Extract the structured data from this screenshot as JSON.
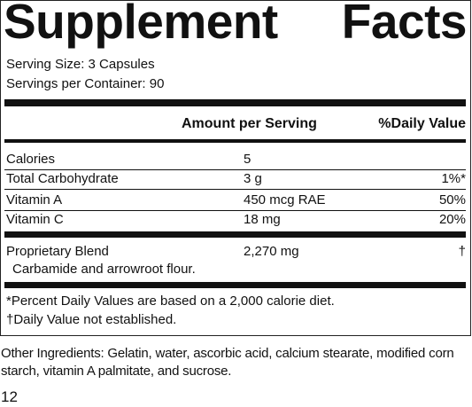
{
  "title": "Supplement Facts",
  "serving_size": "Serving Size: 3 Capsules",
  "servings_per_container": "Servings per Container: 90",
  "table": {
    "header": [
      "Amount per Serving",
      "%Daily Value"
    ],
    "rows": [
      {
        "name": "Calories",
        "amount": "5"
      },
      {
        "name": "Total Carbohydrate",
        "amount": "3 g",
        "dv": "1%*"
      },
      {
        "name": "Vitamin A",
        "amount": "450 mcg RAE",
        "dv": "50%"
      },
      {
        "name": "Vitamin C",
        "amount": "18 mg",
        "dv": "20%"
      },
      {
        "name": "Proprietary Blend",
        "amount": "2,270 mg",
        "dv": "†",
        "description": "Carbamide and arrowroot flour."
      }
    ]
  },
  "footnotes": [
    "*Percent Daily Values are based on a 2,000 calorie diet.",
    "†Daily Value not established."
  ],
  "other_ingredients": "Other Ingredients: Gelatin, water, ascorbic acid, calcium stearate, modified corn starch, vitamin A palmitate, and sucrose.",
  "page_number": "12"
}
